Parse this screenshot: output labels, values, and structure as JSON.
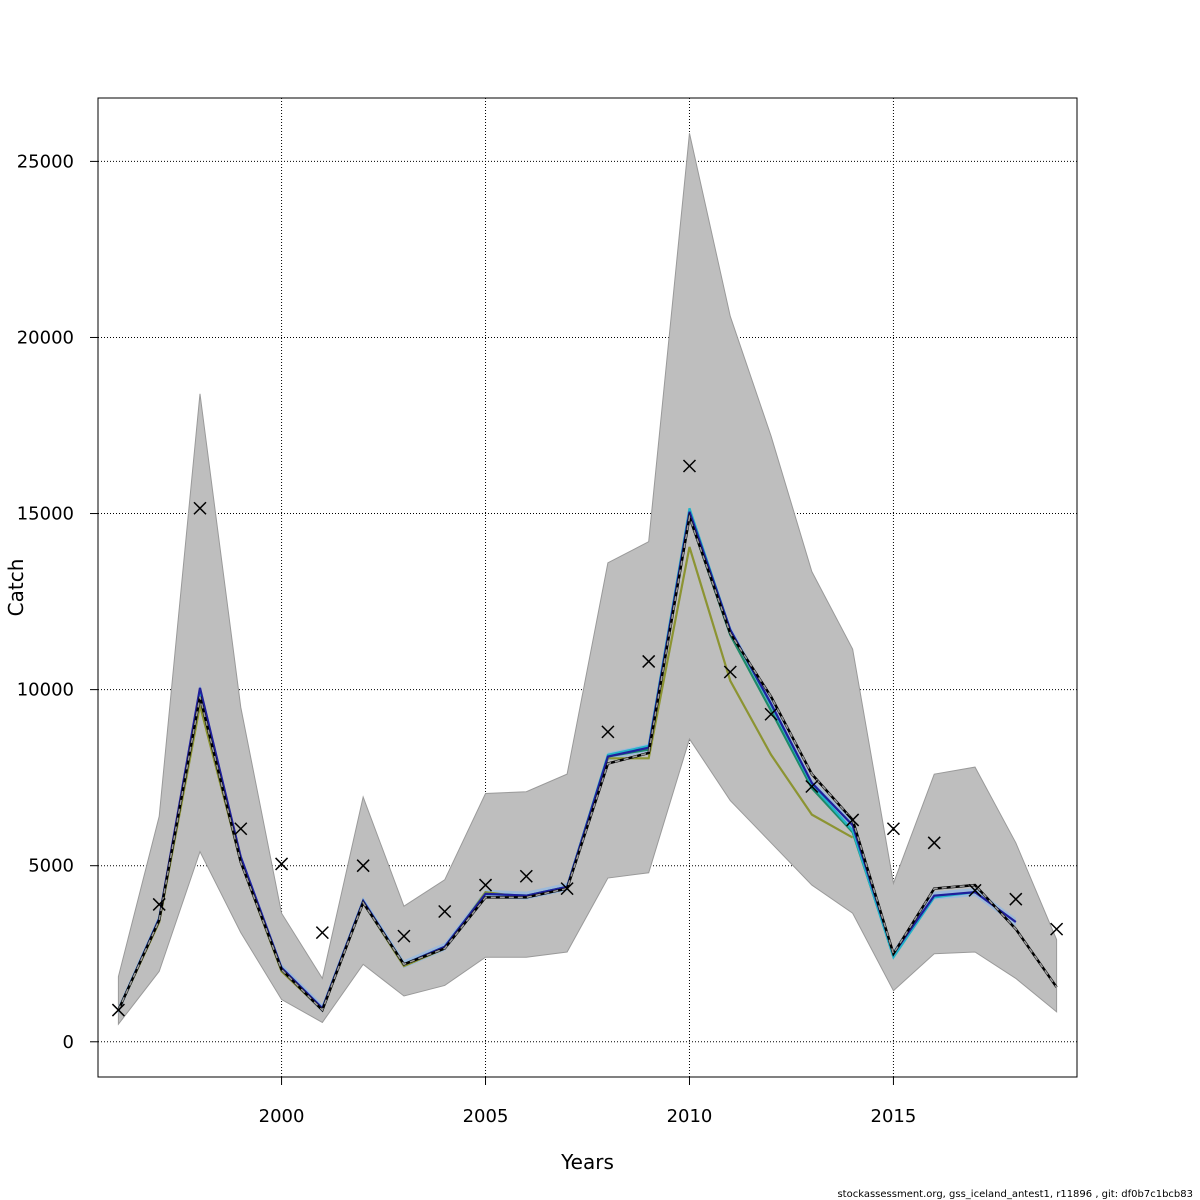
{
  "chart_data": {
    "type": "line",
    "xlabel": "Years",
    "ylabel": "Catch",
    "xlim": [
      1995.5,
      2019.5
    ],
    "ylim": [
      -1000,
      26800
    ],
    "grid": true,
    "x_ticks": [
      2000,
      2005,
      2010,
      2015
    ],
    "y_ticks": [
      0,
      5000,
      10000,
      15000,
      20000,
      25000
    ],
    "x_tick_labels": [
      "2000",
      "2005",
      "2010",
      "2015"
    ],
    "y_tick_labels": [
      "0",
      "5000",
      "10000",
      "15000",
      "20000",
      "25000"
    ],
    "colors": {
      "band": "#bebebe",
      "band_edge": "#9a9a9a",
      "blue_fill": "#8fb8e6",
      "navy": "#1f1f9c",
      "cyan": "#22b4c8",
      "teal": "#1e8a68",
      "olive": "#8c9432",
      "black": "#000000",
      "dashed_inner": "#9a9a9a",
      "grid": "#000000"
    },
    "confidence_band": {
      "x": [
        1996,
        1997,
        1998,
        1999,
        2000,
        2001,
        2002,
        2003,
        2004,
        2005,
        2006,
        2007,
        2008,
        2009,
        2010,
        2011,
        2012,
        2013,
        2014,
        2015,
        2016,
        2017,
        2018,
        2019
      ],
      "lower": [
        500,
        2000,
        5400,
        3100,
        1200,
        550,
        2200,
        1300,
        1600,
        2400,
        2400,
        2550,
        4650,
        4800,
        8600,
        6850,
        5650,
        4450,
        3650,
        1450,
        2500,
        2550,
        1800,
        850
      ],
      "upper": [
        1850,
        6400,
        18400,
        9500,
        3650,
        1800,
        6950,
        3850,
        4600,
        7050,
        7100,
        7600,
        13600,
        14200,
        25800,
        20600,
        17200,
        13350,
        11150,
        4500,
        7600,
        7800,
        5650,
        2900
      ]
    },
    "observed": {
      "x": [
        1996,
        1997,
        1998,
        1999,
        2000,
        2001,
        2002,
        2003,
        2004,
        2005,
        2006,
        2007,
        2008,
        2009,
        2010,
        2011,
        2012,
        2013,
        2014,
        2015,
        2016,
        2017,
        2018,
        2019
      ],
      "values": [
        900,
        3900,
        15150,
        6050,
        5050,
        3100,
        5000,
        3000,
        3700,
        4450,
        4700,
        4350,
        8800,
        10800,
        16350,
        10500,
        9300,
        7250,
        6300,
        6050,
        5650,
        4300,
        4050,
        3200
      ]
    },
    "series": [
      {
        "x": [
          1996,
          1997,
          1998,
          1999,
          2000,
          2001,
          2002,
          2003,
          2004,
          2005,
          2006,
          2007,
          2008,
          2009,
          2010,
          2011,
          2012,
          2013,
          2014,
          2015,
          2016,
          2017,
          2018,
          2019
        ],
        "values": [
          900,
          3450,
          9800,
          5100,
          2050,
          900,
          3950,
          2200,
          2650,
          4100,
          4100,
          4350,
          7900,
          8200,
          14900,
          11600,
          9800,
          7600,
          6300,
          2500,
          4350,
          4450,
          3200,
          1550
        ],
        "style": "dashed-black"
      },
      {
        "x": [
          1996,
          1997,
          1998,
          1999,
          2000,
          2001,
          2002,
          2003,
          2004,
          2005,
          2006,
          2007,
          2008,
          2009,
          2010,
          2011,
          2012,
          2013,
          2014,
          2015,
          2016,
          2017,
          2018
        ],
        "values": [
          900,
          3500,
          10050,
          5250,
          2100,
          950,
          4000,
          2200,
          2700,
          4200,
          4150,
          4400,
          8100,
          8350,
          15050,
          11700,
          9600,
          7350,
          6150,
          2500,
          4150,
          4250,
          3400
        ],
        "style": "navy"
      },
      {
        "x": [
          1996,
          1997,
          1998,
          1999,
          2000,
          2001,
          2002,
          2003,
          2004,
          2005,
          2006,
          2007,
          2008,
          2009,
          2010,
          2011,
          2012,
          2013,
          2014,
          2015,
          2016,
          2017
        ],
        "values": [
          900,
          3500,
          9900,
          5200,
          2100,
          950,
          4000,
          2200,
          2700,
          4200,
          4150,
          4400,
          8150,
          8400,
          15150,
          11700,
          9550,
          7300,
          6000,
          2400,
          4100,
          4250
        ],
        "style": "cyan"
      },
      {
        "x": [
          1996,
          1997,
          1998,
          1999,
          2000,
          2001,
          2002,
          2003,
          2004,
          2005,
          2006,
          2007,
          2008,
          2009,
          2010,
          2011,
          2012,
          2013,
          2014,
          2015
        ],
        "values": [
          900,
          3500,
          9850,
          5150,
          2050,
          950,
          4000,
          2200,
          2700,
          4200,
          4150,
          4400,
          8100,
          8300,
          14900,
          11550,
          9400,
          7200,
          5950,
          2450
        ],
        "style": "teal"
      },
      {
        "x": [
          1996,
          1997,
          1998,
          1999,
          2000,
          2001,
          2002,
          2003,
          2004,
          2005,
          2006,
          2007,
          2008,
          2009,
          2010,
          2011,
          2012,
          2013,
          2014
        ],
        "values": [
          900,
          3400,
          9550,
          5100,
          2000,
          900,
          3950,
          2150,
          2650,
          4250,
          4100,
          4400,
          8050,
          8050,
          14050,
          10250,
          8150,
          6450,
          5800
        ],
        "style": "olive"
      }
    ]
  },
  "footer": {
    "text": "stockassessment.org, gss_iceland_antest1, r11896 , git: df0b7c1bcb83"
  }
}
